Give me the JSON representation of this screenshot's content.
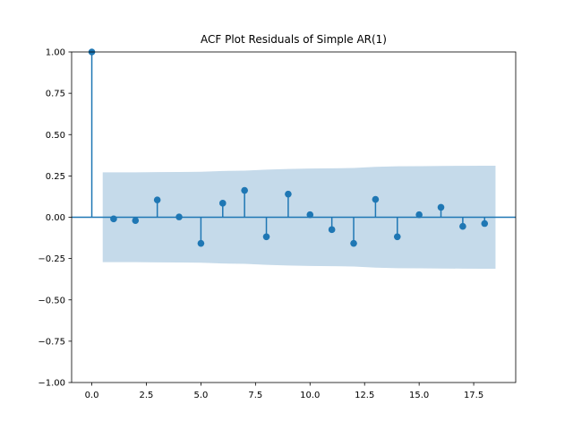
{
  "chart_data": {
    "type": "stem",
    "title": "ACF Plot Residuals of Simple AR(1)",
    "xlabel": "",
    "ylabel": "",
    "xlim": [
      -0.925,
      19.425
    ],
    "ylim": [
      -1.0,
      1.0
    ],
    "x_ticks": [
      0.0,
      2.5,
      5.0,
      7.5,
      10.0,
      12.5,
      15.0,
      17.5
    ],
    "x_tick_labels": [
      "0.0",
      "2.5",
      "5.0",
      "7.5",
      "10.0",
      "12.5",
      "15.0",
      "17.5"
    ],
    "y_ticks": [
      1.0,
      0.75,
      0.5,
      0.25,
      0.0,
      -0.25,
      -0.5,
      -0.75,
      -1.0
    ],
    "y_tick_labels": [
      "1.00",
      "0.75",
      "0.50",
      "0.25",
      "0.00",
      "−0.25",
      "−0.50",
      "−0.75",
      "−1.00"
    ],
    "lags": [
      0,
      1,
      2,
      3,
      4,
      5,
      6,
      7,
      8,
      9,
      10,
      11,
      12,
      13,
      14,
      15,
      16,
      17,
      18
    ],
    "acf": [
      1.0,
      -0.01,
      -0.02,
      0.105,
      0.002,
      -0.158,
      0.085,
      0.162,
      -0.118,
      0.14,
      0.015,
      -0.075,
      -0.158,
      0.108,
      -0.118,
      0.015,
      0.06,
      -0.055,
      -0.038
    ],
    "confidence_band": {
      "x": [
        0.5,
        1,
        2,
        3,
        4,
        5,
        6,
        7,
        8,
        9,
        10,
        11,
        12,
        13,
        14,
        15,
        16,
        17,
        18,
        18.5
      ],
      "upper": [
        0.272,
        0.272,
        0.272,
        0.273,
        0.274,
        0.275,
        0.28,
        0.282,
        0.288,
        0.292,
        0.295,
        0.296,
        0.298,
        0.305,
        0.308,
        0.309,
        0.31,
        0.311,
        0.312,
        0.312
      ],
      "lower": [
        -0.272,
        -0.272,
        -0.272,
        -0.273,
        -0.274,
        -0.275,
        -0.28,
        -0.282,
        -0.288,
        -0.292,
        -0.295,
        -0.296,
        -0.298,
        -0.305,
        -0.308,
        -0.309,
        -0.31,
        -0.311,
        -0.312,
        -0.312
      ]
    },
    "grid": false,
    "colors": {
      "stem": "#1f77b4",
      "band": "#c5daea",
      "axis": "#000000"
    }
  }
}
